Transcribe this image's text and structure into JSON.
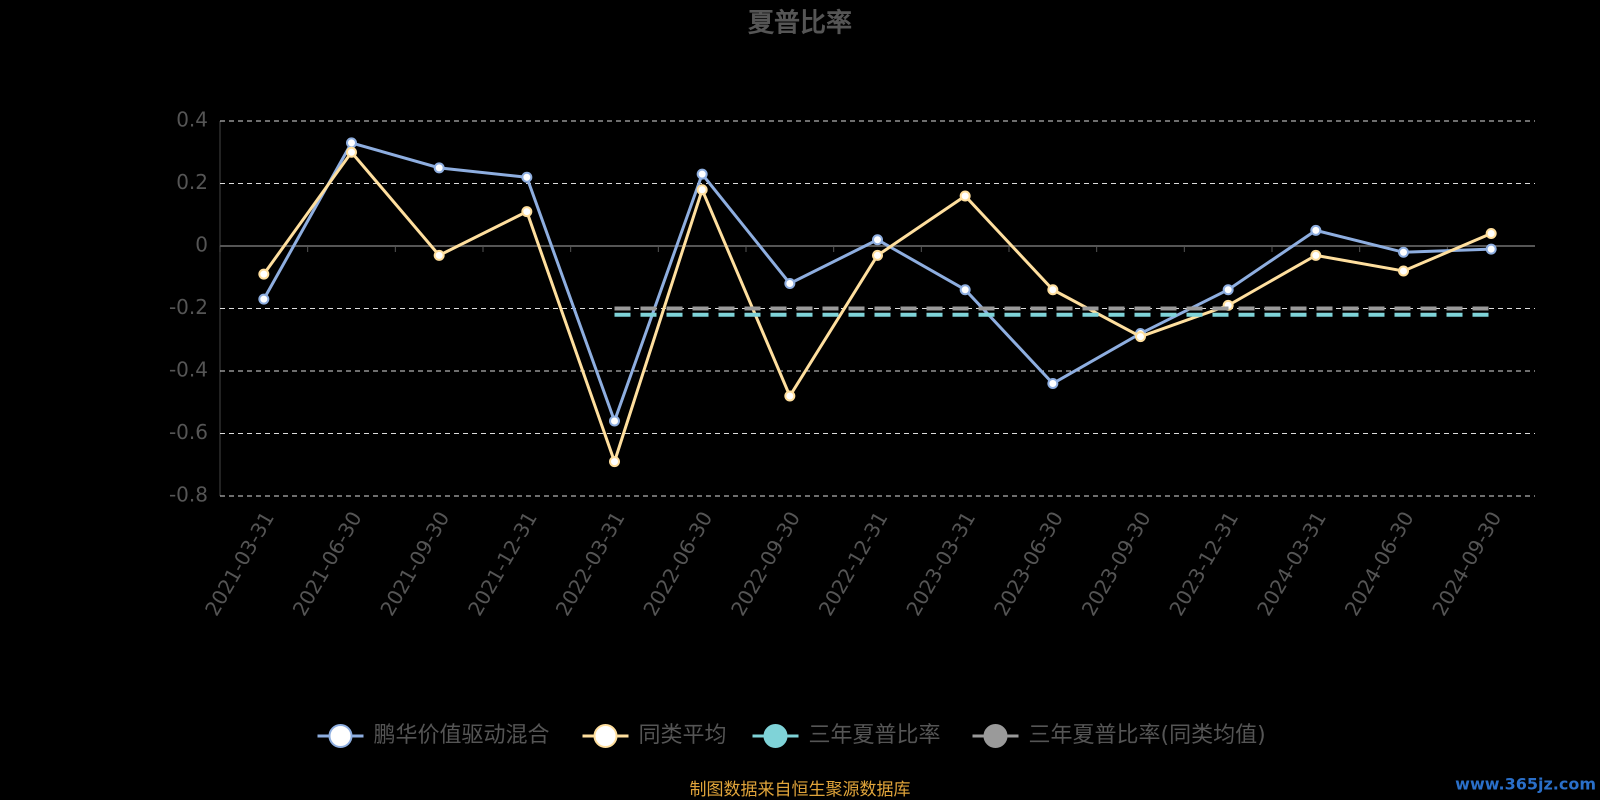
{
  "chart_data": {
    "type": "line",
    "title": "夏普比率",
    "categories": [
      "2021-03-31",
      "2021-06-30",
      "2021-09-30",
      "2021-12-31",
      "2022-03-31",
      "2022-06-30",
      "2022-09-30",
      "2022-12-31",
      "2023-03-31",
      "2023-06-30",
      "2023-09-30",
      "2023-12-31",
      "2024-03-31",
      "2024-06-30",
      "2024-09-30"
    ],
    "series": [
      {
        "name": "鹏华价值驱动混合",
        "color": "#8eaee0",
        "values": [
          -0.17,
          0.33,
          0.25,
          0.22,
          -0.56,
          0.23,
          -0.12,
          0.02,
          -0.14,
          -0.44,
          -0.28,
          -0.14,
          0.05,
          -0.02,
          -0.01
        ]
      },
      {
        "name": "同类平均",
        "color": "#ffdf9e",
        "values": [
          -0.09,
          0.3,
          -0.03,
          0.11,
          -0.69,
          0.18,
          -0.48,
          -0.03,
          0.16,
          -0.14,
          -0.29,
          -0.19,
          -0.03,
          -0.08,
          0.04
        ]
      },
      {
        "name": "三年夏普比率",
        "color": "#7fd3d8",
        "values": [
          null,
          null,
          null,
          null,
          -0.22,
          -0.22,
          -0.22,
          -0.22,
          -0.22,
          -0.22,
          -0.22,
          -0.22,
          -0.22,
          -0.22,
          -0.22
        ]
      },
      {
        "name": "三年夏普比率(同类均值)",
        "color": "#9a9a9a",
        "values": [
          null,
          null,
          null,
          null,
          -0.2,
          -0.2,
          -0.2,
          -0.2,
          -0.2,
          -0.2,
          -0.2,
          -0.2,
          -0.2,
          -0.2,
          -0.2
        ]
      }
    ],
    "ylim": [
      -0.8,
      0.4
    ],
    "yticks": [
      -0.8,
      -0.6,
      -0.4,
      -0.2,
      0,
      0.2,
      0.4
    ],
    "grid": true,
    "source": "制图数据来自恒生聚源数据库",
    "watermark": "www.365jz.com"
  }
}
